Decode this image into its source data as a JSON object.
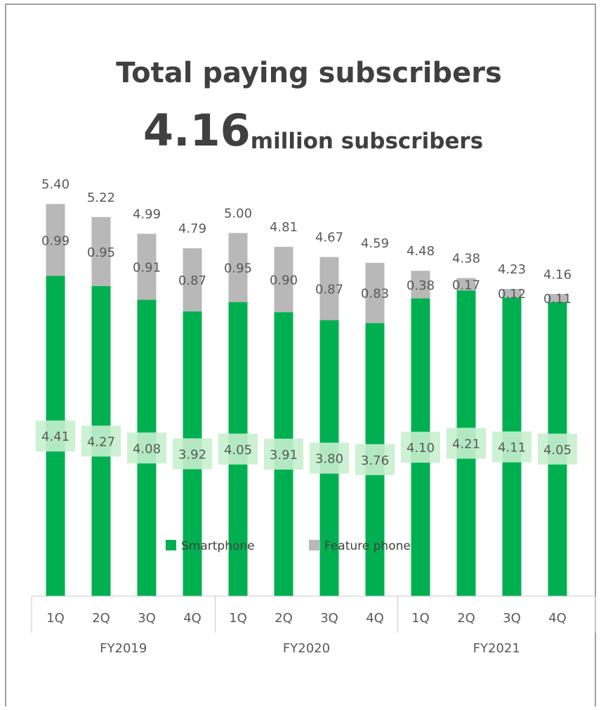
{
  "chart_data": {
    "type": "stacked_bar",
    "title": "Total paying subscribers",
    "headline_value": "4.16",
    "headline_unit": "million subscribers",
    "categories": [
      "1Q",
      "2Q",
      "3Q",
      "4Q",
      "1Q",
      "2Q",
      "3Q",
      "4Q",
      "1Q",
      "2Q",
      "3Q",
      "4Q"
    ],
    "groups": [
      "FY2019",
      "FY2020",
      "FY2021"
    ],
    "series": [
      {
        "name": "Smartphone",
        "color": "#00b050",
        "values": [
          4.41,
          4.27,
          4.08,
          3.92,
          4.05,
          3.91,
          3.8,
          3.76,
          4.1,
          4.21,
          4.11,
          4.05
        ],
        "value_labels": [
          "4.41",
          "4.27",
          "4.08",
          "3.92",
          "4.05",
          "3.91",
          "3.80",
          "3.76",
          "4.10",
          "4.21",
          "4.11",
          "4.05"
        ]
      },
      {
        "name": "Feature phone",
        "color": "#b8b8b8",
        "values": [
          0.99,
          0.95,
          0.91,
          0.87,
          0.95,
          0.9,
          0.87,
          0.83,
          0.38,
          0.17,
          0.12,
          0.11
        ],
        "value_labels": [
          "0.99",
          "0.95",
          "0.91",
          "0.87",
          "0.95",
          "0.90",
          "0.87",
          "0.83",
          "0.38",
          "0.17",
          "0.12",
          "0.11"
        ]
      }
    ],
    "totals": [
      5.4,
      5.22,
      4.99,
      4.79,
      5.0,
      4.81,
      4.67,
      4.59,
      4.48,
      4.38,
      4.23,
      4.16
    ],
    "total_labels": [
      "5.40",
      "5.22",
      "4.99",
      "4.79",
      "5.00",
      "4.81",
      "4.67",
      "4.59",
      "4.48",
      "4.38",
      "4.23",
      "4.16"
    ]
  }
}
